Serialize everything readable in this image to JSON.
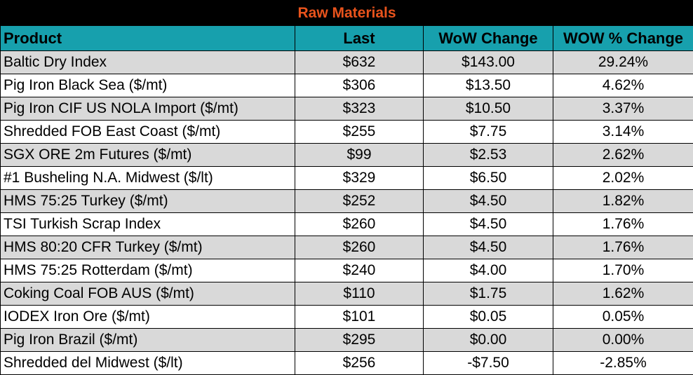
{
  "title": "Raw Materials",
  "headers": {
    "product": "Product",
    "last": "Last",
    "wow_change": "WoW Change",
    "wow_pct_change": "WOW % Change"
  },
  "rows": [
    {
      "product": "Baltic Dry Index",
      "last": "$632",
      "wow_change": "$143.00",
      "wow_pct": "29.24%"
    },
    {
      "product": "Pig Iron Black Sea ($/mt)",
      "last": "$306",
      "wow_change": "$13.50",
      "wow_pct": "4.62%"
    },
    {
      "product": "Pig Iron CIF US NOLA Import ($/mt)",
      "last": "$323",
      "wow_change": "$10.50",
      "wow_pct": "3.37%"
    },
    {
      "product": "Shredded FOB East Coast ($/mt)",
      "last": "$255",
      "wow_change": "$7.75",
      "wow_pct": "3.14%"
    },
    {
      "product": "SGX ORE 2m Futures ($/mt)",
      "last": "$99",
      "wow_change": "$2.53",
      "wow_pct": "2.62%"
    },
    {
      "product": "#1 Busheling N.A. Midwest ($/lt)",
      "last": "$329",
      "wow_change": "$6.50",
      "wow_pct": "2.02%"
    },
    {
      "product": "HMS 75:25 Turkey ($/mt)",
      "last": "$252",
      "wow_change": "$4.50",
      "wow_pct": "1.82%"
    },
    {
      "product": "TSI Turkish Scrap Index",
      "last": "$260",
      "wow_change": "$4.50",
      "wow_pct": "1.76%"
    },
    {
      "product": "HMS 80:20 CFR Turkey ($/mt)",
      "last": "$260",
      "wow_change": "$4.50",
      "wow_pct": "1.76%"
    },
    {
      "product": "HMS 75:25 Rotterdam ($/mt)",
      "last": "$240",
      "wow_change": "$4.00",
      "wow_pct": "1.70%"
    },
    {
      "product": "Coking Coal FOB AUS ($/mt)",
      "last": "$110",
      "wow_change": "$1.75",
      "wow_pct": "1.62%"
    },
    {
      "product": "IODEX  Iron Ore ($/mt)",
      "last": "$101",
      "wow_change": "$0.05",
      "wow_pct": "0.05%"
    },
    {
      "product": "Pig Iron Brazil ($/mt)",
      "last": "$295",
      "wow_change": "$0.00",
      "wow_pct": "0.00%"
    },
    {
      "product": "Shredded del  Midwest ($/lt)",
      "last": "$256",
      "wow_change": "-$7.50",
      "wow_pct": "-2.85%"
    }
  ],
  "colors": {
    "title_bg": "#000000",
    "title_text": "#e8531c",
    "header_bg": "#17a0ad",
    "row_shade": "#d9d9d9"
  }
}
